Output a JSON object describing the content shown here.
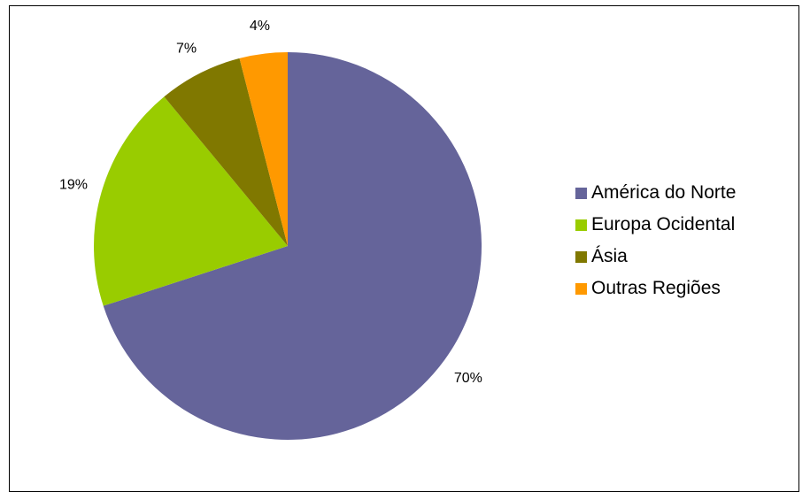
{
  "chart_data": {
    "type": "pie",
    "title": "",
    "slices": [
      {
        "label": "América do Norte",
        "value": 70,
        "display": "70%",
        "color": "#65649a"
      },
      {
        "label": "Europa Ocidental",
        "value": 19,
        "display": "19%",
        "color": "#99cc00"
      },
      {
        "label": "Ásia",
        "value": 7,
        "display": "7%",
        "color": "#807800"
      },
      {
        "label": "Outras Regiões",
        "value": 4,
        "display": "4%",
        "color": "#ff9900"
      }
    ],
    "legend_position": "right",
    "start_angle": "12 o'clock",
    "direction": "clockwise"
  }
}
